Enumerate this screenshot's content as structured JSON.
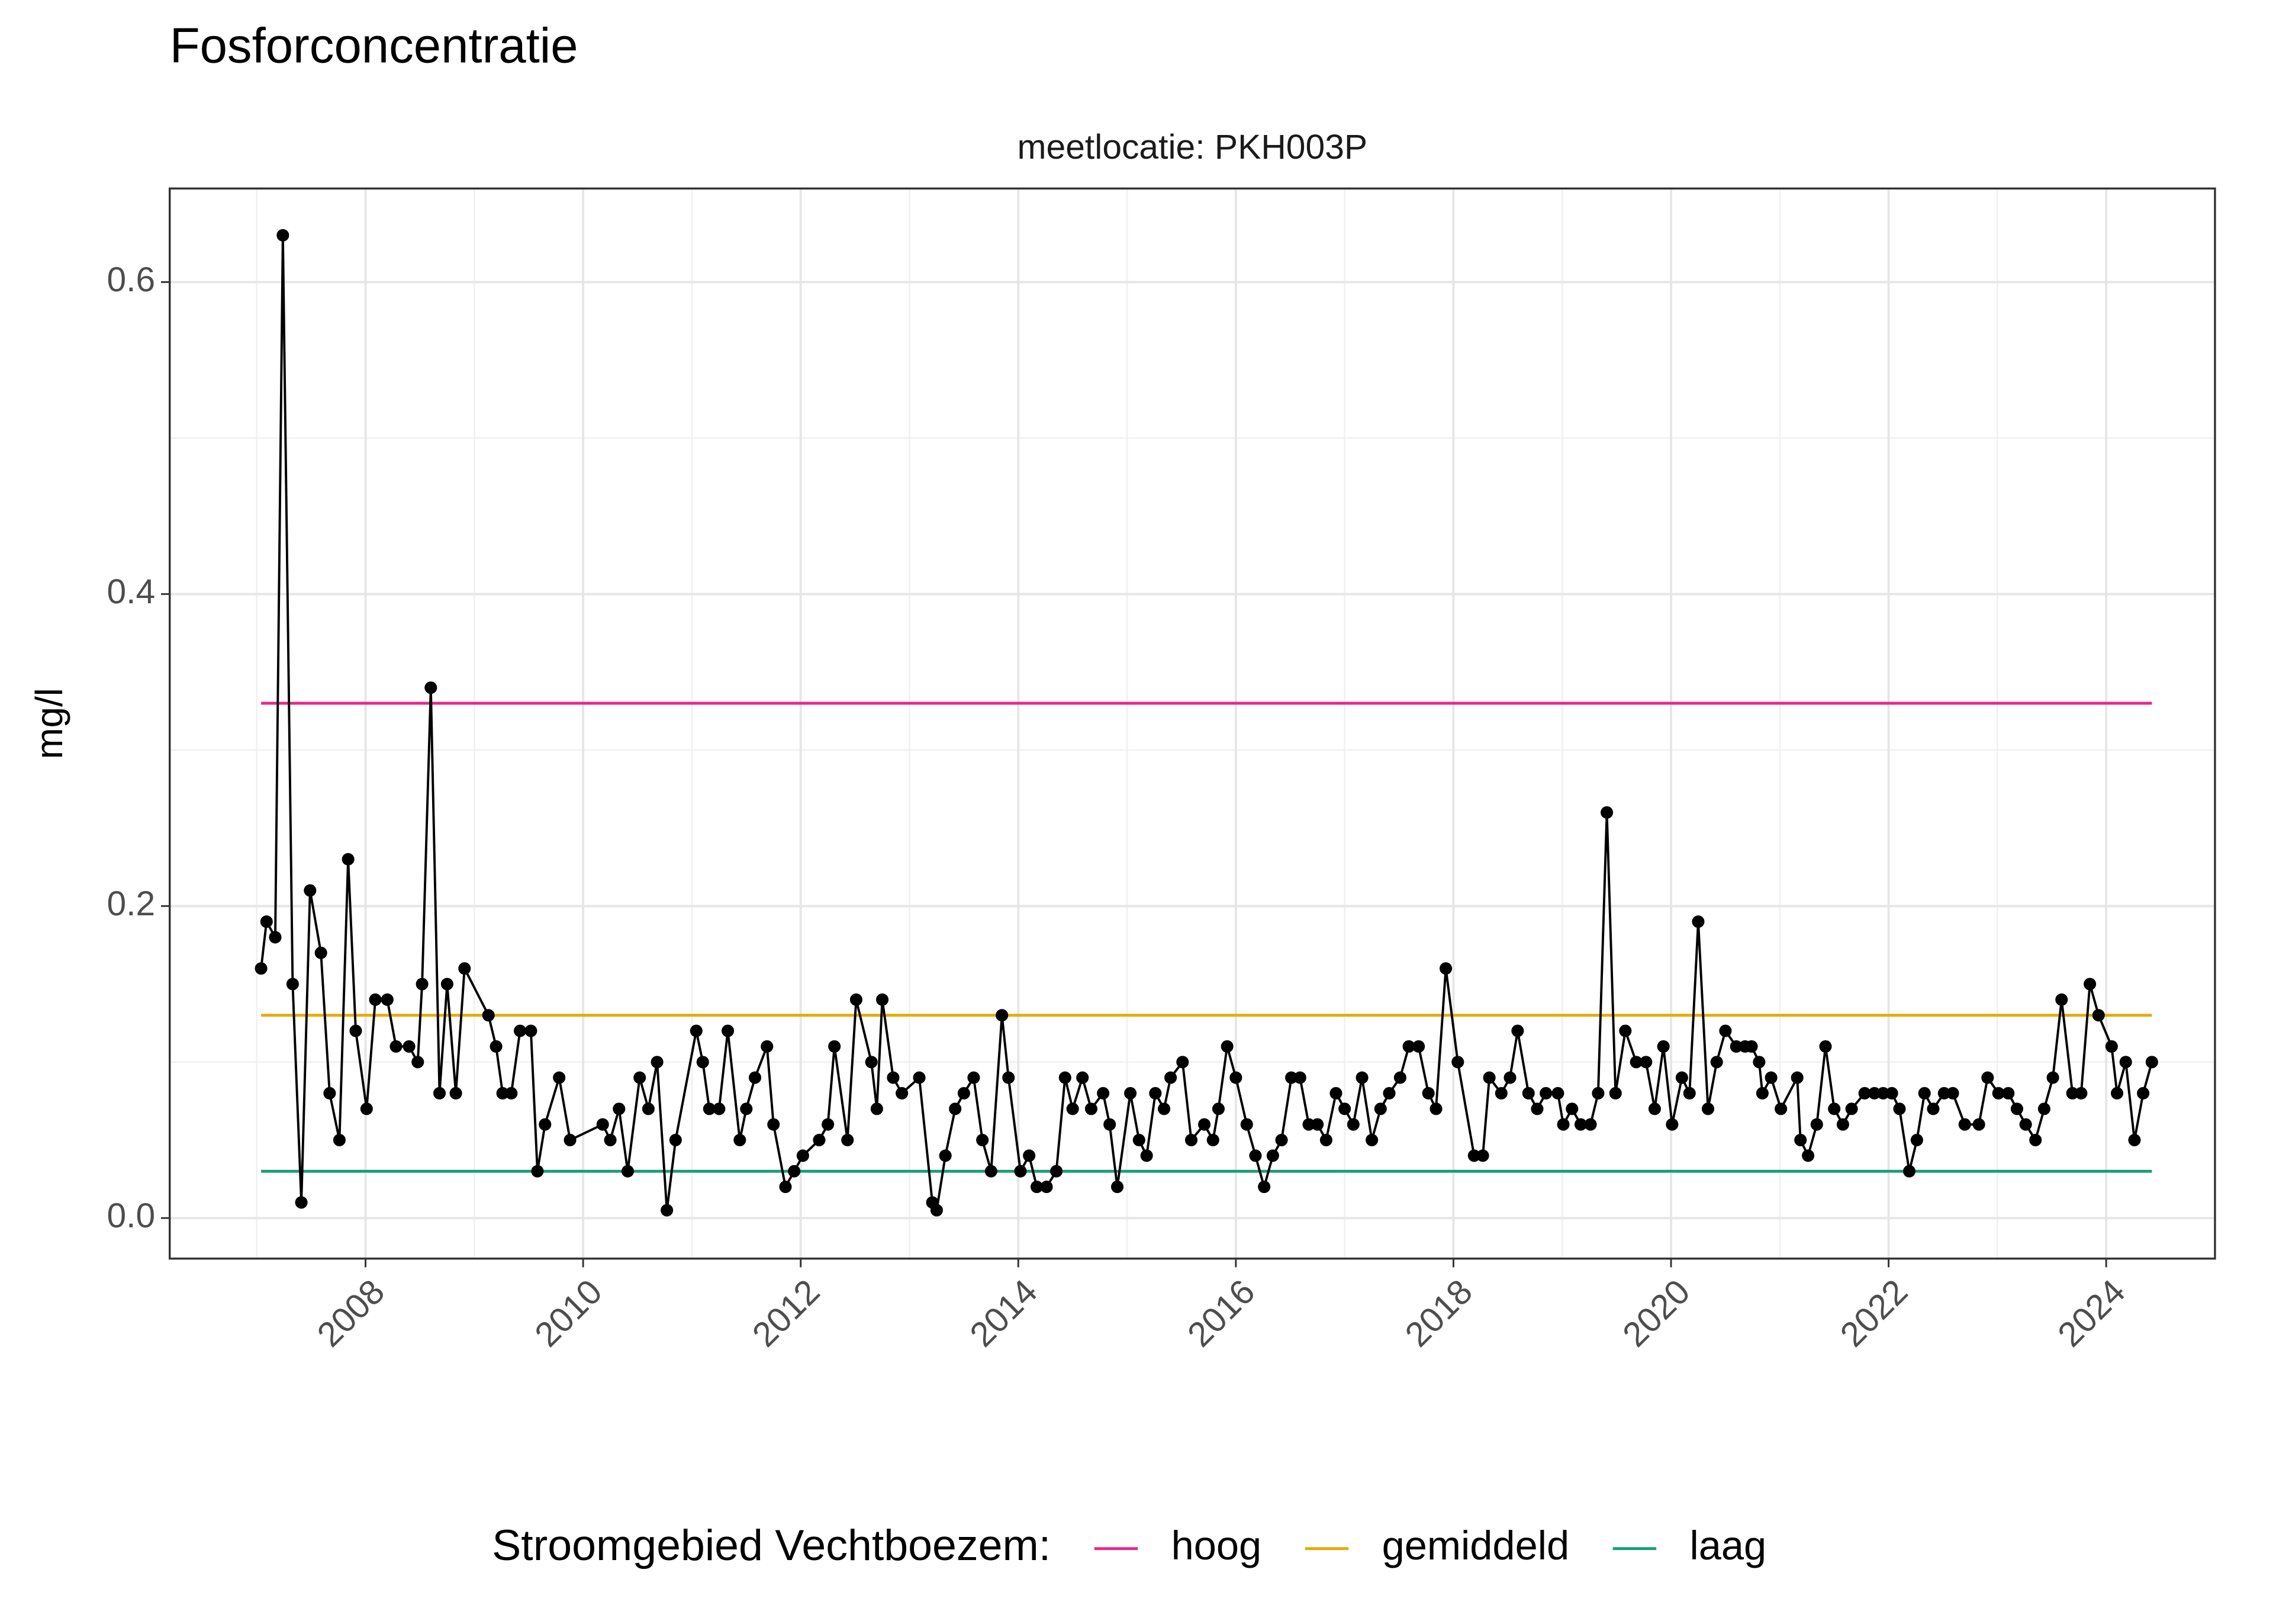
{
  "chart_data": {
    "type": "line",
    "title": "Fosforconcentratie",
    "subtitle": "meetlocatie: PKH003P",
    "y_label": "mg/l",
    "color": "#000000",
    "marker": "circle",
    "x": [
      2007.04,
      2007.09,
      2007.17,
      2007.24,
      2007.33,
      2007.41,
      2007.49,
      2007.59,
      2007.67,
      2007.76,
      2007.84,
      2007.91,
      2008.01,
      2008.09,
      2008.2,
      2008.28,
      2008.4,
      2008.48,
      2008.52,
      2008.6,
      2008.68,
      2008.75,
      2008.83,
      2008.91,
      2009.13,
      2009.2,
      2009.26,
      2009.34,
      2009.42,
      2009.52,
      2009.58,
      2009.65,
      2009.78,
      2009.88,
      2010.18,
      2010.25,
      2010.33,
      2010.41,
      2010.52,
      2010.6,
      2010.68,
      2010.77,
      2010.85,
      2011.04,
      2011.1,
      2011.16,
      2011.25,
      2011.33,
      2011.44,
      2011.5,
      2011.58,
      2011.69,
      2011.75,
      2011.86,
      2011.94,
      2012.02,
      2012.17,
      2012.25,
      2012.31,
      2012.43,
      2012.51,
      2012.65,
      2012.7,
      2012.75,
      2012.85,
      2012.93,
      2013.09,
      2013.21,
      2013.25,
      2013.33,
      2013.42,
      2013.5,
      2013.59,
      2013.67,
      2013.75,
      2013.85,
      2013.91,
      2014.02,
      2014.1,
      2014.17,
      2014.26,
      2014.35,
      2014.43,
      2014.5,
      2014.59,
      2014.67,
      2014.78,
      2014.84,
      2014.91,
      2015.03,
      2015.11,
      2015.18,
      2015.26,
      2015.34,
      2015.4,
      2015.51,
      2015.59,
      2015.71,
      2015.79,
      2015.84,
      2015.92,
      2016.0,
      2016.1,
      2016.18,
      2016.26,
      2016.34,
      2016.42,
      2016.51,
      2016.59,
      2016.67,
      2016.75,
      2016.83,
      2016.92,
      2017.0,
      2017.08,
      2017.16,
      2017.25,
      2017.33,
      2017.41,
      2017.51,
      2017.59,
      2017.68,
      2017.77,
      2017.84,
      2017.93,
      2018.04,
      2018.19,
      2018.27,
      2018.33,
      2018.44,
      2018.52,
      2018.59,
      2018.69,
      2018.77,
      2018.85,
      2018.96,
      2019.01,
      2019.09,
      2019.17,
      2019.26,
      2019.33,
      2019.41,
      2019.49,
      2019.58,
      2019.68,
      2019.77,
      2019.85,
      2019.93,
      2020.01,
      2020.1,
      2020.17,
      2020.25,
      2020.34,
      2020.42,
      2020.5,
      2020.6,
      2020.68,
      2020.74,
      2020.81,
      2020.84,
      2020.92,
      2021.01,
      2021.16,
      2021.19,
      2021.26,
      2021.34,
      2021.42,
      2021.5,
      2021.58,
      2021.66,
      2021.78,
      2021.87,
      2021.95,
      2022.03,
      2022.1,
      2022.19,
      2022.26,
      2022.33,
      2022.41,
      2022.51,
      2022.59,
      2022.7,
      2022.83,
      2022.91,
      2023.01,
      2023.1,
      2023.18,
      2023.26,
      2023.35,
      2023.43,
      2023.51,
      2023.59,
      2023.69,
      2023.77,
      2023.85,
      2023.93,
      2024.05,
      2024.1,
      2024.18,
      2024.26,
      2024.34,
      2024.42
    ],
    "values": [
      0.16,
      0.19,
      0.18,
      0.63,
      0.15,
      0.01,
      0.21,
      0.17,
      0.08,
      0.05,
      0.23,
      0.12,
      0.07,
      0.14,
      0.14,
      0.11,
      0.11,
      0.1,
      0.15,
      0.34,
      0.08,
      0.15,
      0.08,
      0.16,
      0.13,
      0.11,
      0.08,
      0.08,
      0.12,
      0.12,
      0.03,
      0.06,
      0.09,
      0.05,
      0.06,
      0.05,
      0.07,
      0.03,
      0.09,
      0.07,
      0.1,
      0.005,
      0.05,
      0.12,
      0.1,
      0.07,
      0.07,
      0.12,
      0.05,
      0.07,
      0.09,
      0.11,
      0.06,
      0.02,
      0.03,
      0.04,
      0.05,
      0.06,
      0.11,
      0.05,
      0.14,
      0.1,
      0.07,
      0.14,
      0.09,
      0.08,
      0.09,
      0.01,
      0.005,
      0.04,
      0.07,
      0.08,
      0.09,
      0.05,
      0.03,
      0.13,
      0.09,
      0.03,
      0.04,
      0.02,
      0.02,
      0.03,
      0.09,
      0.07,
      0.09,
      0.07,
      0.08,
      0.06,
      0.02,
      0.08,
      0.05,
      0.04,
      0.08,
      0.07,
      0.09,
      0.1,
      0.05,
      0.06,
      0.05,
      0.07,
      0.11,
      0.09,
      0.06,
      0.04,
      0.02,
      0.04,
      0.05,
      0.09,
      0.09,
      0.06,
      0.06,
      0.05,
      0.08,
      0.07,
      0.06,
      0.09,
      0.05,
      0.07,
      0.08,
      0.09,
      0.11,
      0.11,
      0.08,
      0.07,
      0.16,
      0.1,
      0.04,
      0.04,
      0.09,
      0.08,
      0.09,
      0.12,
      0.08,
      0.07,
      0.08,
      0.08,
      0.06,
      0.07,
      0.06,
      0.06,
      0.08,
      0.26,
      0.08,
      0.12,
      0.1,
      0.1,
      0.07,
      0.11,
      0.06,
      0.09,
      0.08,
      0.19,
      0.07,
      0.1,
      0.12,
      0.11,
      0.11,
      0.11,
      0.1,
      0.08,
      0.09,
      0.07,
      0.09,
      0.05,
      0.04,
      0.06,
      0.11,
      0.07,
      0.06,
      0.07,
      0.08,
      0.08,
      0.08,
      0.08,
      0.07,
      0.03,
      0.05,
      0.08,
      0.07,
      0.08,
      0.08,
      0.06,
      0.06,
      0.09,
      0.08,
      0.08,
      0.07,
      0.06,
      0.05,
      0.07,
      0.09,
      0.14,
      0.08,
      0.08,
      0.15,
      0.13,
      0.11,
      0.08,
      0.1,
      0.05,
      0.08,
      0.1
    ],
    "reference_lines": [
      {
        "name": "hoog",
        "color": "#e7298a",
        "value": 0.33
      },
      {
        "name": "gemiddeld",
        "color": "#e6ab02",
        "value": 0.13
      },
      {
        "name": "laag",
        "color": "#1b9e77",
        "value": 0.03
      }
    ],
    "legend_title": "Stroomgebied Vechtboezem:",
    "legend_position": "bottom",
    "xlim": [
      2006.2,
      2025.0
    ],
    "xticks": [
      2008,
      2010,
      2012,
      2014,
      2016,
      2018,
      2020,
      2022,
      2024
    ],
    "x_minor_gridlines": [
      2007,
      2009,
      2011,
      2013,
      2015,
      2017,
      2019,
      2021,
      2023
    ],
    "ylim": [
      -0.026,
      0.66
    ],
    "yticks": [
      {
        "value": 0,
        "label": "0.0"
      },
      0.2,
      0.4,
      0.6
    ],
    "y_minor_gridlines": [
      0.1,
      0.3,
      0.5
    ],
    "grid": true
  }
}
